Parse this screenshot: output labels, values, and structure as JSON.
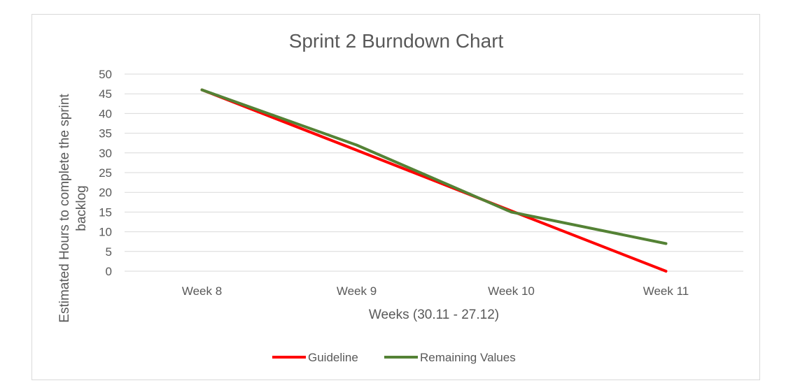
{
  "chart_data": {
    "type": "line",
    "title": "Sprint 2 Burndown Chart",
    "xlabel": "Weeks (30.11 - 27.12)",
    "ylabel_lines": [
      "Estimated Hours to complete the sprint",
      "backlog"
    ],
    "categories": [
      "Week 8",
      "Week 9",
      "Week 10",
      "Week 11"
    ],
    "ylim": [
      0,
      50
    ],
    "yticks": [
      0,
      5,
      10,
      15,
      20,
      25,
      30,
      35,
      40,
      45,
      50
    ],
    "grid": true,
    "legend_position": "bottom",
    "series": [
      {
        "name": "Guideline",
        "color": "#ff0000",
        "values": [
          46,
          30.7,
          15.3,
          0
        ]
      },
      {
        "name": "Remaining Values",
        "color": "#548235",
        "values": [
          46,
          32,
          15,
          7
        ]
      }
    ]
  }
}
